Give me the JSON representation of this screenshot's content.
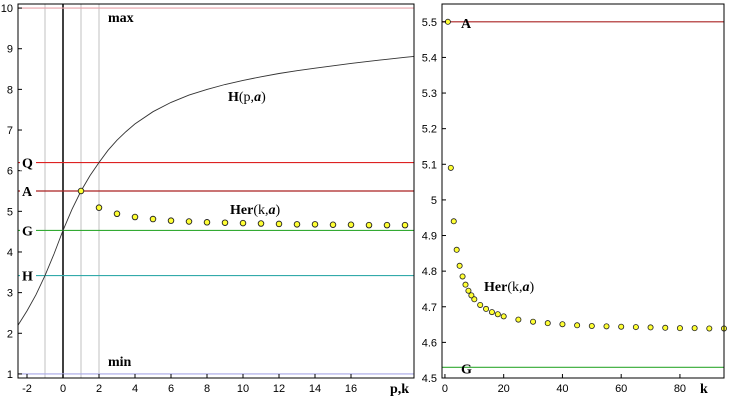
{
  "chart_data": [
    {
      "type": "line",
      "xlim": [
        -2.5,
        19.5
      ],
      "ylim": [
        0.9,
        10.1
      ],
      "xticks": [
        -2,
        0,
        2,
        4,
        6,
        8,
        10,
        12,
        14,
        16
      ],
      "yticks": [
        1,
        2,
        3,
        4,
        5,
        6,
        7,
        8,
        9,
        10
      ],
      "xlabel": "p,k",
      "grid": false,
      "hlines": [
        {
          "key": "max",
          "label": "max",
          "y": 10.0,
          "color": "#e8a0a8",
          "label_side": "inside"
        },
        {
          "key": "min",
          "label": "min",
          "y": 1.0,
          "color": "#a8a8e8",
          "label_side": "inside"
        },
        {
          "key": "Q",
          "label": "Q",
          "y": 6.2,
          "color": "#dd2222",
          "label_side": "left"
        },
        {
          "key": "A",
          "label": "A",
          "y": 5.5,
          "color": "#aa2222",
          "label_side": "left"
        },
        {
          "key": "G",
          "label": "G",
          "y": 4.53,
          "color": "#33aa33",
          "label_side": "left"
        },
        {
          "key": "H",
          "label": "H",
          "y": 3.42,
          "color": "#33aaaa",
          "label_side": "left"
        }
      ],
      "vlines": [
        {
          "x": -1,
          "color": "#c0c0c0"
        },
        {
          "x": 0,
          "color": "#000000"
        },
        {
          "x": 1,
          "color": "#c0c0c0"
        },
        {
          "x": 2,
          "color": "#c0c0c0"
        }
      ],
      "curve": {
        "label_bold": "H",
        "label_plain": "(p,",
        "label_italic": "a",
        "label_end": ")",
        "x": [
          -2.5,
          -2,
          -1.5,
          -1,
          -0.5,
          0,
          0.5,
          1,
          1.5,
          2,
          2.5,
          3,
          3.5,
          4,
          5,
          6,
          7,
          8,
          9,
          10,
          11,
          12,
          13,
          14,
          15,
          16,
          17,
          18,
          19,
          19.5
        ],
        "y": [
          2.2,
          2.55,
          2.95,
          3.42,
          3.95,
          4.53,
          5.05,
          5.5,
          5.88,
          6.2,
          6.5,
          6.75,
          6.96,
          7.15,
          7.45,
          7.68,
          7.86,
          8.0,
          8.12,
          8.22,
          8.31,
          8.39,
          8.46,
          8.52,
          8.58,
          8.64,
          8.69,
          8.74,
          8.79,
          8.81
        ]
      },
      "points": {
        "label_bold": "Her",
        "label_plain": "(k,",
        "label_italic": "a",
        "label_end": ")",
        "x": [
          1,
          2,
          3,
          4,
          5,
          6,
          7,
          8,
          9,
          10,
          11,
          12,
          13,
          14,
          15,
          16,
          17,
          18,
          19
        ],
        "y": [
          5.5,
          5.09,
          4.94,
          4.86,
          4.81,
          4.77,
          4.75,
          4.73,
          4.72,
          4.71,
          4.7,
          4.69,
          4.68,
          4.68,
          4.67,
          4.67,
          4.66,
          4.66,
          4.66
        ]
      }
    },
    {
      "type": "scatter",
      "xlim": [
        -1,
        95
      ],
      "ylim": [
        4.5,
        5.55
      ],
      "xticks": [
        0,
        20,
        40,
        60,
        80
      ],
      "yticks": [
        4.5,
        4.6,
        4.7,
        4.8,
        4.9,
        5,
        5.1,
        5.2,
        5.3,
        5.4,
        5.5
      ],
      "xlabel": "k",
      "grid": false,
      "hlines": [
        {
          "key": "A",
          "label": "A",
          "y": 5.5,
          "color": "#aa2222"
        },
        {
          "key": "G",
          "label": "G",
          "y": 4.53,
          "color": "#33aa33"
        }
      ],
      "points": {
        "label_bold": "Her",
        "label_plain": "(k,",
        "label_italic": "a",
        "label_end": ")",
        "x": [
          1,
          2,
          3,
          4,
          5,
          6,
          7,
          8,
          9,
          10,
          12,
          14,
          16,
          18,
          20,
          25,
          30,
          35,
          40,
          45,
          50,
          55,
          60,
          65,
          70,
          75,
          80,
          85,
          90,
          95
        ],
        "y": [
          5.5,
          5.09,
          4.94,
          4.86,
          4.815,
          4.785,
          4.762,
          4.745,
          4.732,
          4.721,
          4.705,
          4.694,
          4.685,
          4.679,
          4.673,
          4.664,
          4.658,
          4.654,
          4.651,
          4.648,
          4.646,
          4.645,
          4.644,
          4.643,
          4.642,
          4.641,
          4.64,
          4.64,
          4.639,
          4.639
        ]
      }
    }
  ]
}
